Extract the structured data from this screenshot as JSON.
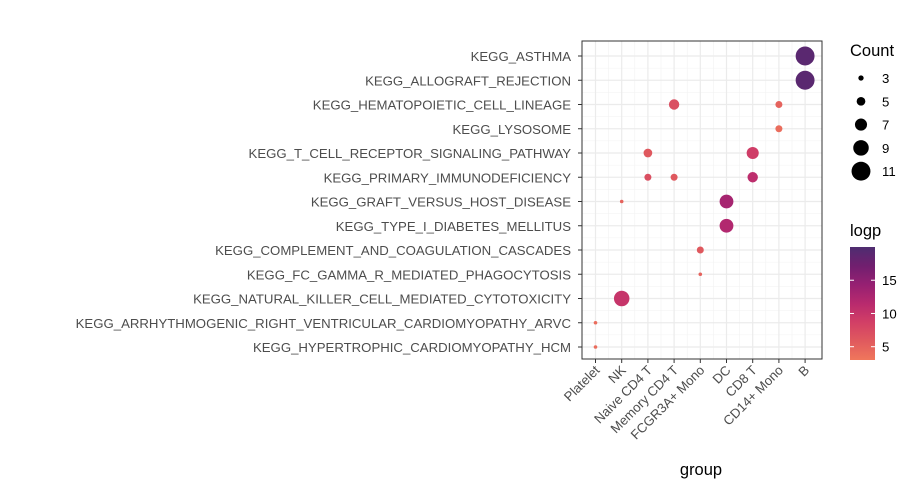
{
  "chart_data": {
    "type": "scatter",
    "title": "",
    "xlabel": "group",
    "ylabel": "",
    "categories_x": [
      "Platelet",
      "NK",
      "Naive CD4 T",
      "Memory CD4 T",
      "FCGR3A+ Mono",
      "DC",
      "CD8 T",
      "CD14+ Mono",
      "B"
    ],
    "categories_y": [
      "KEGG_ASTHMA",
      "KEGG_ALLOGRAFT_REJECTION",
      "KEGG_HEMATOPOIETIC_CELL_LINEAGE",
      "KEGG_LYSOSOME",
      "KEGG_T_CELL_RECEPTOR_SIGNALING_PATHWAY",
      "KEGG_PRIMARY_IMMUNODEFICIENCY",
      "KEGG_GRAFT_VERSUS_HOST_DISEASE",
      "KEGG_TYPE_I_DIABETES_MELLITUS",
      "KEGG_COMPLEMENT_AND_COAGULATION_CASCADES",
      "KEGG_FC_GAMMA_R_MEDIATED_PHAGOCYTOSIS",
      "KEGG_NATURAL_KILLER_CELL_MEDIATED_CYTOTOXICITY",
      "KEGG_ARRHYTHMOGENIC_RIGHT_VENTRICULAR_CARDIOMYOPATHY_ARVC",
      "KEGG_HYPERTROPHIC_CARDIOMYOPATHY_HCM"
    ],
    "points": [
      {
        "x": "B",
        "y": "KEGG_ASTHMA",
        "count": 11,
        "logp": 19
      },
      {
        "x": "B",
        "y": "KEGG_ALLOGRAFT_REJECTION",
        "count": 11,
        "logp": 19
      },
      {
        "x": "Memory CD4 T",
        "y": "KEGG_HEMATOPOIETIC_CELL_LINEAGE",
        "count": 6,
        "logp": 7
      },
      {
        "x": "CD14+ Mono",
        "y": "KEGG_HEMATOPOIETIC_CELL_LINEAGE",
        "count": 4,
        "logp": 5
      },
      {
        "x": "CD14+ Mono",
        "y": "KEGG_LYSOSOME",
        "count": 4,
        "logp": 4
      },
      {
        "x": "Naive CD4 T",
        "y": "KEGG_T_CELL_RECEPTOR_SIGNALING_PATHWAY",
        "count": 5,
        "logp": 6
      },
      {
        "x": "CD8 T",
        "y": "KEGG_T_CELL_RECEPTOR_SIGNALING_PATHWAY",
        "count": 7,
        "logp": 9
      },
      {
        "x": "Naive CD4 T",
        "y": "KEGG_PRIMARY_IMMUNODEFICIENCY",
        "count": 4,
        "logp": 7
      },
      {
        "x": "Memory CD4 T",
        "y": "KEGG_PRIMARY_IMMUNODEFICIENCY",
        "count": 4,
        "logp": 6
      },
      {
        "x": "CD8 T",
        "y": "KEGG_PRIMARY_IMMUNODEFICIENCY",
        "count": 6,
        "logp": 11
      },
      {
        "x": "NK",
        "y": "KEGG_GRAFT_VERSUS_HOST_DISEASE",
        "count": 2,
        "logp": 5
      },
      {
        "x": "DC",
        "y": "KEGG_GRAFT_VERSUS_HOST_DISEASE",
        "count": 8,
        "logp": 13
      },
      {
        "x": "DC",
        "y": "KEGG_TYPE_I_DIABETES_MELLITUS",
        "count": 8,
        "logp": 12
      },
      {
        "x": "FCGR3A+ Mono",
        "y": "KEGG_COMPLEMENT_AND_COAGULATION_CASCADES",
        "count": 4,
        "logp": 6
      },
      {
        "x": "FCGR3A+ Mono",
        "y": "KEGG_FC_GAMMA_R_MEDIATED_PHAGOCYTOSIS",
        "count": 2,
        "logp": 5
      },
      {
        "x": "NK",
        "y": "KEGG_NATURAL_KILLER_CELL_MEDIATED_CYTOTOXICITY",
        "count": 9,
        "logp": 10
      },
      {
        "x": "Platelet",
        "y": "KEGG_ARRHYTHMOGENIC_RIGHT_VENTRICULAR_CARDIOMYOPATHY_ARVC",
        "count": 2,
        "logp": 4
      },
      {
        "x": "Platelet",
        "y": "KEGG_HYPERTROPHIC_CARDIOMYOPATHY_HCM",
        "count": 2,
        "logp": 4
      }
    ],
    "size_legend": {
      "title": "Count",
      "values": [
        3,
        5,
        7,
        9,
        11
      ]
    },
    "color_legend": {
      "title": "logp",
      "ticks": [
        5,
        10,
        15
      ],
      "range": [
        3,
        20
      ],
      "colors": [
        "#F0775C",
        "#E05A5E",
        "#D23F66",
        "#B82A6E",
        "#962072",
        "#711F6F",
        "#4E2D70"
      ]
    },
    "grid": true,
    "legend_position": "right"
  }
}
